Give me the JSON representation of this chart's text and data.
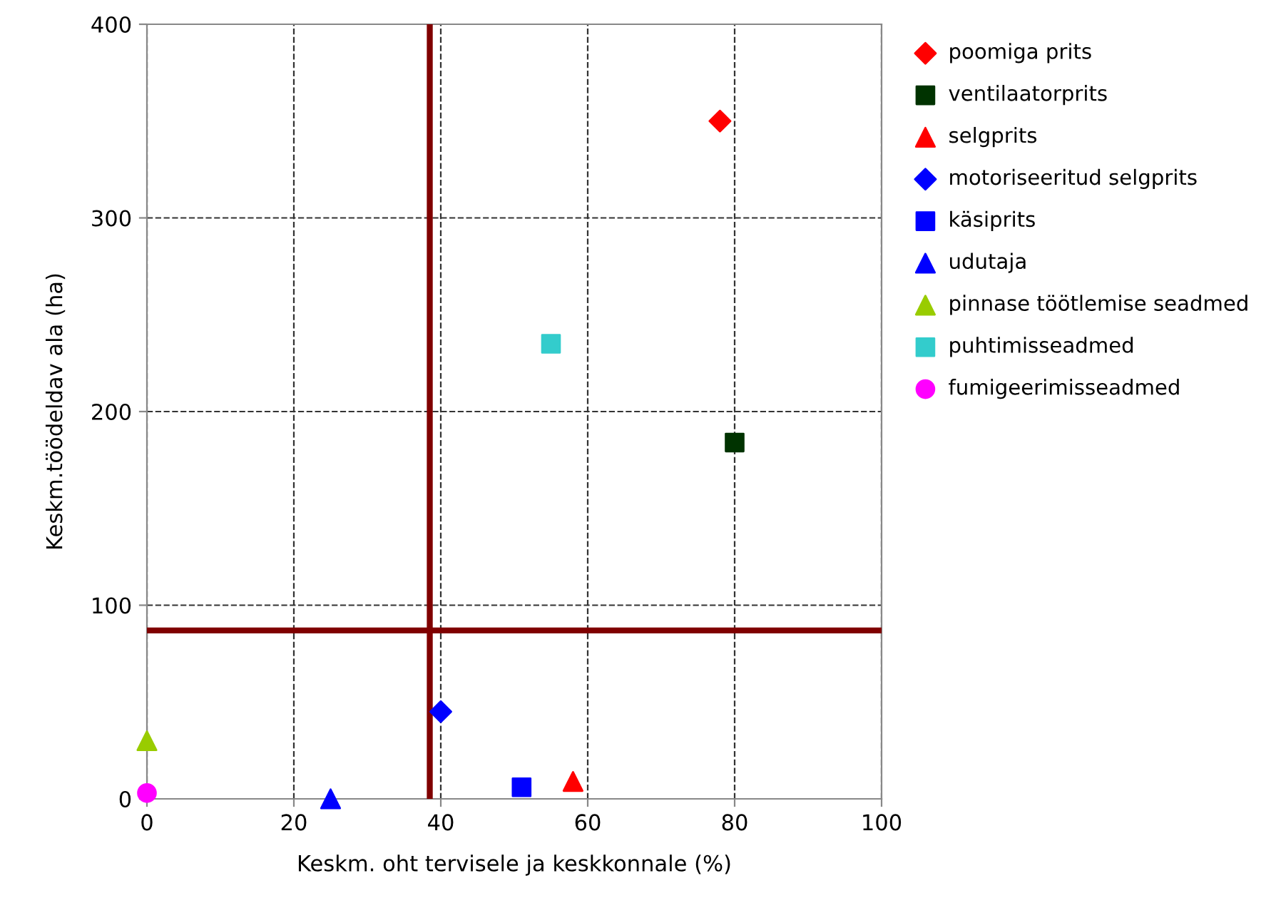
{
  "chart_data": {
    "type": "scatter",
    "xlabel": "Keskm. oht tervisele ja keskkonnale (%)",
    "ylabel": "Keskm.töödeldav ala (ha)",
    "xlim": [
      0,
      100
    ],
    "xticks": [
      0,
      20,
      40,
      60,
      80,
      100
    ],
    "ylim": [
      0,
      400
    ],
    "yticks": [
      0,
      100,
      200,
      300,
      400
    ],
    "grid": true,
    "legend": "right",
    "line_style": "dashed",
    "series": [
      {
        "name": "poomiga prits",
        "color": "#ff0000",
        "marker": "diamond",
        "x": [
          78
        ],
        "values": [
          350
        ]
      },
      {
        "name": "ventilaatorprits",
        "color": "#003300",
        "marker": "square",
        "x": [
          80
        ],
        "values": [
          184
        ]
      },
      {
        "name": "selgprits",
        "color": "#ff0000",
        "marker": "triangle",
        "x": [
          58
        ],
        "values": [
          9
        ]
      },
      {
        "name": "motoriseeritud selgprits",
        "color": "#0000ff",
        "marker": "diamond",
        "x": [
          40
        ],
        "values": [
          45
        ]
      },
      {
        "name": "käsiprits",
        "color": "#0000ff",
        "marker": "square",
        "x": [
          51
        ],
        "values": [
          6
        ]
      },
      {
        "name": "udutaja",
        "color": "#0000ff",
        "marker": "triangle",
        "x": [
          25
        ],
        "values": [
          0
        ]
      },
      {
        "name": "pinnase töötlemise seadmed",
        "color": "#99cc00",
        "marker": "triangle",
        "x": [
          0
        ],
        "values": [
          30
        ]
      },
      {
        "name": "puhtimisseadmed",
        "color": "#33cccc",
        "marker": "square",
        "x": [
          55
        ],
        "values": [
          235
        ]
      },
      {
        "name": "fumigeerimisseadmed",
        "color": "#ff00ff",
        "marker": "circle",
        "x": [
          0
        ],
        "values": [
          3
        ]
      }
    ],
    "ref_lines": [
      {
        "axis": "x",
        "value": 38.5,
        "color": "#800000",
        "line_style": "solid"
      },
      {
        "axis": "y",
        "value": 87,
        "color": "#800000",
        "line_style": "solid"
      }
    ]
  }
}
